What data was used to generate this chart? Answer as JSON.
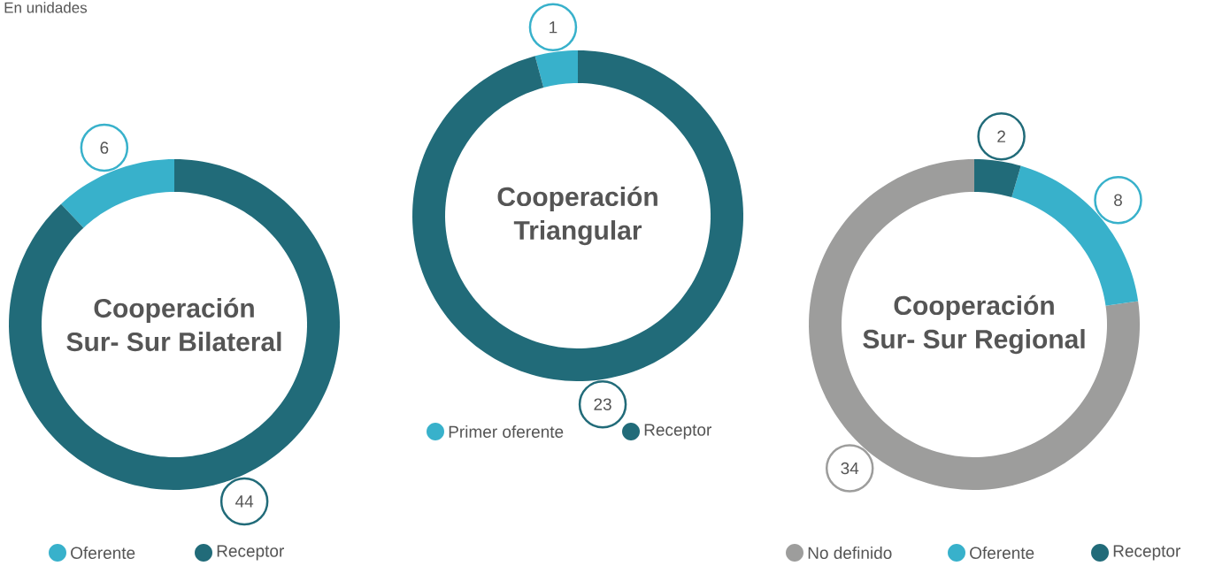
{
  "chart_data": [
    {
      "type": "donut",
      "title": "Cooperación",
      "subtitle": "Sur- Sur Bilateral",
      "annotations": [
        "En unidades"
      ],
      "categories": [
        "Oferente",
        "Receptor"
      ],
      "values": [
        6,
        44
      ],
      "colors": [
        "#38b1cb",
        "#216b79"
      ],
      "legend": "bottom",
      "data_labels": true
    },
    {
      "type": "donut",
      "title": "Cooperación",
      "subtitle": "Triangular",
      "categories": [
        "Primer oferente",
        "Receptor"
      ],
      "values": [
        1,
        23
      ],
      "colors": [
        "#38b1cb",
        "#216b79"
      ],
      "legend": "bottom",
      "data_labels": true
    },
    {
      "type": "donut",
      "title": "Cooperación",
      "subtitle": "Sur- Sur Regional",
      "categories": [
        "No definido",
        "Oferente",
        "Receptor"
      ],
      "values": [
        34,
        8,
        2
      ],
      "colors": [
        "#9d9d9c",
        "#38b1cb",
        "#216b79"
      ],
      "legend": "bottom",
      "data_labels": true
    }
  ]
}
